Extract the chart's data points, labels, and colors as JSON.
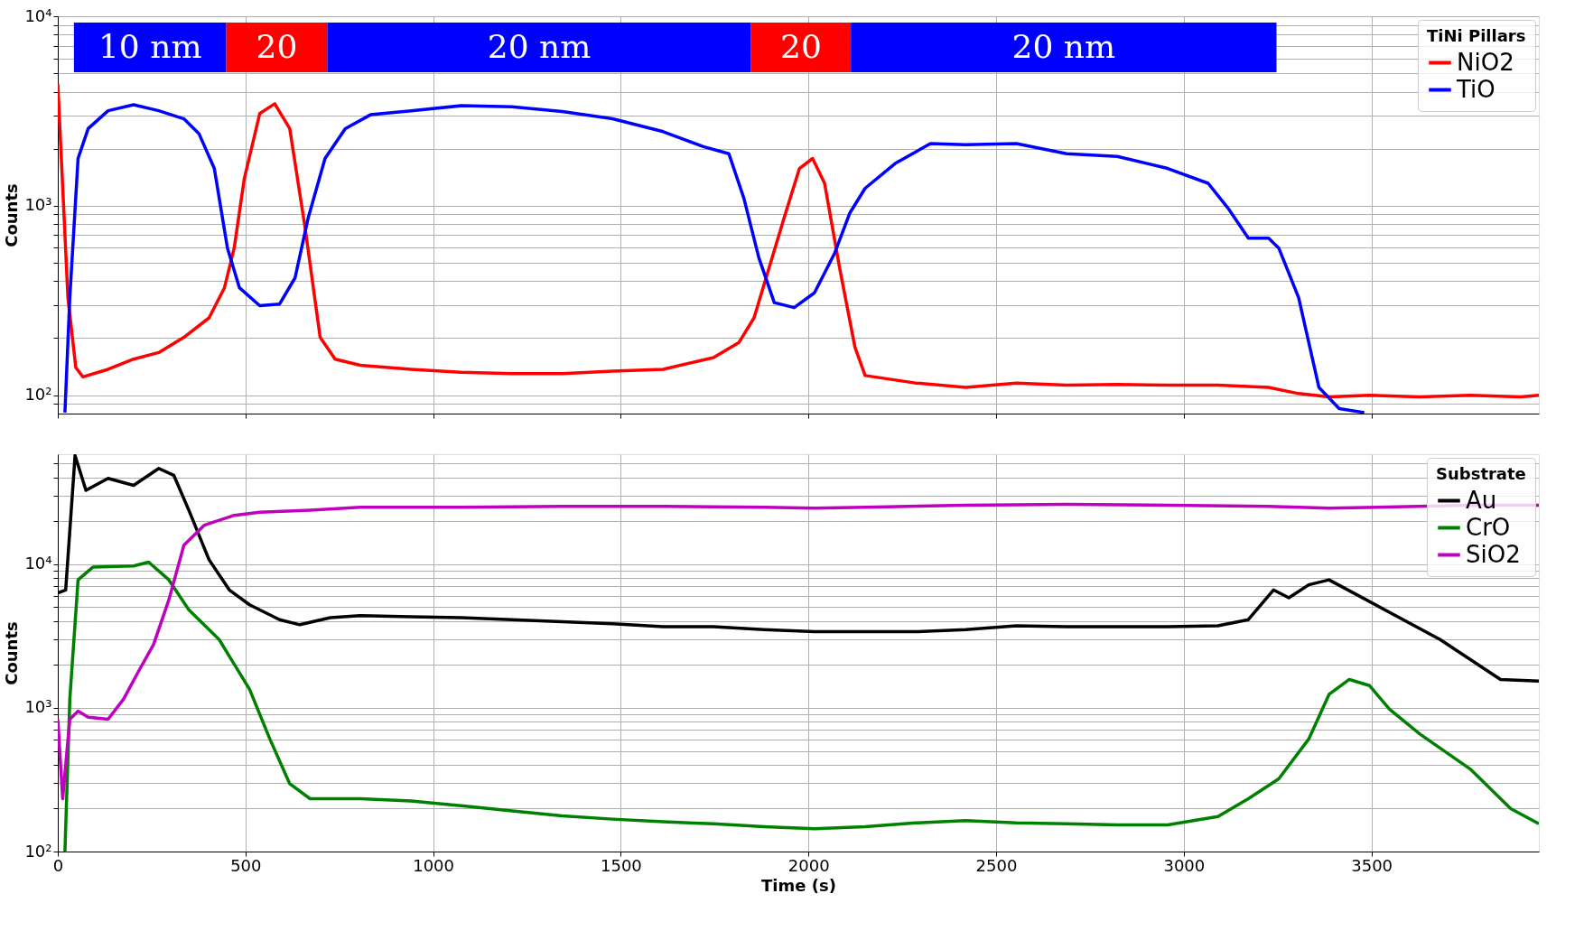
{
  "chart_data": [
    {
      "type": "line",
      "ylabel": "Counts",
      "legend_title": "TiNi Pillars",
      "legend": "top right",
      "grid": true,
      "log": "y",
      "tick_labels": "y",
      "line_style": "solid",
      "xlim": [
        0,
        3946
      ],
      "xticks": [
        0,
        500,
        1000,
        1500,
        2000,
        2500,
        3000,
        3500
      ],
      "ylim": [
        80,
        10000
      ],
      "yticks": [
        {
          "value": 90,
          "label": null
        },
        {
          "value": 100,
          "label": "10²"
        },
        {
          "value": 200,
          "label": null
        },
        {
          "value": 300,
          "label": null
        },
        {
          "value": 400,
          "label": null
        },
        {
          "value": 500,
          "label": null
        },
        {
          "value": 600,
          "label": null
        },
        {
          "value": 700,
          "label": null
        },
        {
          "value": 800,
          "label": null
        },
        {
          "value": 900,
          "label": null
        },
        {
          "value": 1000,
          "label": "10³"
        },
        {
          "value": 2000,
          "label": null
        },
        {
          "value": 3000,
          "label": null
        },
        {
          "value": 4000,
          "label": null
        },
        {
          "value": 5000,
          "label": null
        },
        {
          "value": 6000,
          "label": null
        },
        {
          "value": 7000,
          "label": null
        },
        {
          "value": 8000,
          "label": null
        },
        {
          "value": 9000,
          "label": null
        },
        {
          "value": 10000,
          "label": "10⁴"
        }
      ],
      "bands": [
        {
          "axis": "x",
          "from": 43,
          "to": 449,
          "label": "10 nm",
          "color": "#0000ff"
        },
        {
          "axis": "x",
          "from": 449,
          "to": 718,
          "label": "20",
          "color": "#ff0000"
        },
        {
          "axis": "x",
          "from": 718,
          "to": 1847,
          "label": "20 nm",
          "color": "#0000ff"
        },
        {
          "axis": "x",
          "from": 1847,
          "to": 2113,
          "label": "20",
          "color": "#ff0000"
        },
        {
          "axis": "x",
          "from": 2113,
          "to": 3247,
          "label": "20 nm",
          "color": "#0000ff"
        }
      ],
      "series": [
        {
          "name": "NiO2",
          "color": "#ff0000",
          "x": [
            0,
            27,
            48,
            67,
            134,
            202,
            269,
            336,
            403,
            444,
            470,
            497,
            538,
            578,
            618,
            659,
            699,
            739,
            806,
            941,
            1075,
            1210,
            1344,
            1478,
            1613,
            1747,
            1815,
            1855,
            1895,
            1935,
            1976,
            2011,
            2043,
            2083,
            2124,
            2151,
            2285,
            2419,
            2554,
            2688,
            2823,
            2957,
            3091,
            3226,
            3306,
            3387,
            3495,
            3629,
            3763,
            3898,
            3946
          ],
          "values": [
            4400,
            327,
            140,
            125,
            137,
            155,
            168,
            202,
            256,
            369,
            598,
            1394,
            3063,
            3453,
            2553,
            762,
            202,
            155,
            144,
            137,
            132,
            130,
            130,
            134,
            137,
            158,
            190,
            256,
            470,
            860,
            1573,
            1776,
            1313,
            470,
            179,
            127,
            116,
            110,
            116,
            113,
            114,
            113,
            113,
            110,
            102,
            98,
            100,
            98,
            100,
            98,
            100
          ]
        },
        {
          "name": "TiO",
          "color": "#0000ff",
          "x": [
            19,
            32,
            54,
            81,
            134,
            202,
            269,
            336,
            376,
            417,
            452,
            484,
            538,
            591,
            632,
            667,
            712,
            766,
            833,
            941,
            1075,
            1210,
            1344,
            1478,
            1613,
            1720,
            1788,
            1828,
            1868,
            1909,
            1962,
            2016,
            2070,
            2110,
            2151,
            2231,
            2325,
            2419,
            2554,
            2688,
            2823,
            2957,
            3065,
            3118,
            3172,
            3226,
            3253,
            3306,
            3360,
            3414,
            3481
          ],
          "values": [
            81,
            327,
            1776,
            2553,
            3172,
            3410,
            3172,
            2876,
            2404,
            1573,
            598,
            369,
            297,
            303,
            416,
            860,
            1776,
            2553,
            3020,
            3172,
            3373,
            3330,
            3140,
            2876,
            2460,
            2052,
            1880,
            1094,
            530,
            308,
            290,
            347,
            563,
            914,
            1236,
            1671,
            2128,
            2100,
            2128,
            1880,
            1820,
            1573,
            1313,
            970,
            675,
            675,
            598,
            327,
            110,
            85,
            81
          ]
        }
      ]
    },
    {
      "type": "line",
      "xlabel": "Time (s)",
      "ylabel": "Counts",
      "legend_title": "Substrate",
      "legend": "top right",
      "grid": true,
      "log": "y",
      "line_style": "solid",
      "xlim": [
        0,
        3946
      ],
      "xticks": [
        0,
        500,
        1000,
        1500,
        2000,
        2500,
        3000,
        3500
      ],
      "ylim": [
        100,
        58000
      ],
      "yticks": [
        {
          "value": 100,
          "label": "10²"
        },
        {
          "value": 200,
          "label": null
        },
        {
          "value": 300,
          "label": null
        },
        {
          "value": 400,
          "label": null
        },
        {
          "value": 500,
          "label": null
        },
        {
          "value": 600,
          "label": null
        },
        {
          "value": 700,
          "label": null
        },
        {
          "value": 800,
          "label": null
        },
        {
          "value": 900,
          "label": null
        },
        {
          "value": 1000,
          "label": "10³"
        },
        {
          "value": 2000,
          "label": null
        },
        {
          "value": 3000,
          "label": null
        },
        {
          "value": 4000,
          "label": null
        },
        {
          "value": 5000,
          "label": null
        },
        {
          "value": 6000,
          "label": null
        },
        {
          "value": 7000,
          "label": null
        },
        {
          "value": 8000,
          "label": null
        },
        {
          "value": 9000,
          "label": null
        },
        {
          "value": 10000,
          "label": "10⁴"
        },
        {
          "value": 20000,
          "label": null
        },
        {
          "value": 30000,
          "label": null
        },
        {
          "value": 40000,
          "label": null
        },
        {
          "value": 50000,
          "label": null
        }
      ],
      "series": [
        {
          "name": "Au",
          "color": "#000000",
          "x": [
            0,
            21,
            46,
            75,
            134,
            202,
            269,
            309,
            349,
            403,
            457,
            511,
            591,
            645,
            726,
            806,
            941,
            1075,
            1210,
            1344,
            1478,
            1613,
            1747,
            1882,
            2016,
            2151,
            2285,
            2419,
            2554,
            2688,
            2823,
            2957,
            3091,
            3172,
            3239,
            3280,
            3333,
            3387,
            3683,
            3763,
            3844,
            3946
          ],
          "values": [
            6300,
            6600,
            56800,
            32500,
            39400,
            35200,
            46200,
            41400,
            23700,
            10700,
            6600,
            5200,
            4100,
            3780,
            4230,
            4370,
            4300,
            4230,
            4100,
            3970,
            3840,
            3660,
            3660,
            3490,
            3380,
            3380,
            3380,
            3490,
            3720,
            3660,
            3660,
            3660,
            3720,
            4100,
            6600,
            5820,
            7160,
            7760,
            2980,
            2170,
            1573,
            1530
          ]
        },
        {
          "name": "CrO",
          "color": "#008000",
          "x": [
            19,
            32,
            54,
            94,
            202,
            242,
            296,
            349,
            430,
            511,
            565,
            618,
            672,
            806,
            941,
            1075,
            1210,
            1344,
            1478,
            1613,
            1747,
            1882,
            2016,
            2151,
            2285,
            2419,
            2554,
            2688,
            2823,
            2957,
            3091,
            3172,
            3253,
            3333,
            3387,
            3441,
            3495,
            3548,
            3629,
            3763,
            3871,
            3946
          ],
          "values": [
            100,
            1146,
            7750,
            9530,
            9690,
            10300,
            7750,
            4800,
            2980,
            1343,
            606,
            296,
            233,
            233,
            225,
            208,
            192,
            177,
            168,
            161,
            156,
            149,
            144,
            149,
            158,
            164,
            158,
            156,
            153,
            153,
            175,
            233,
            320,
            606,
            1240,
            1573,
            1425,
            977,
            656,
            375,
            199,
            156
          ]
        },
        {
          "name": "SiO2",
          "color": "#bf00bf",
          "x": [
            0,
            13,
            32,
            54,
            81,
            134,
            175,
            215,
            255,
            296,
            336,
            390,
            470,
            538,
            672,
            806,
            1075,
            1344,
            1613,
            1882,
            2016,
            2151,
            2419,
            2688,
            2957,
            3226,
            3387,
            3763,
            3946
          ],
          "values": [
            832,
            233,
            832,
            946,
            860,
            832,
            1146,
            1790,
            2750,
            5640,
            13500,
            18600,
            21800,
            22900,
            23700,
            24800,
            24800,
            25200,
            25200,
            24800,
            24400,
            24800,
            25600,
            26000,
            25600,
            25200,
            24400,
            25600,
            25600
          ]
        }
      ]
    }
  ]
}
